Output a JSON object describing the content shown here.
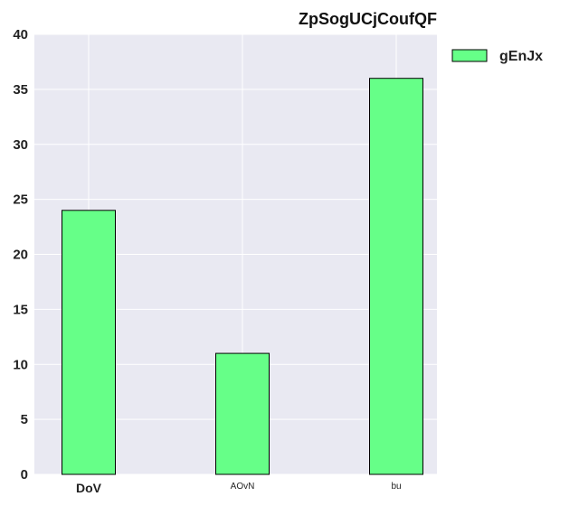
{
  "chart_data": {
    "type": "bar",
    "title": "ZpSogUCjCoufQF",
    "xlabel": "",
    "ylabel": "",
    "categories": [
      "DoV",
      "AOvN",
      "bu"
    ],
    "series": [
      {
        "name": "gEnJx",
        "values": [
          24,
          11,
          36
        ]
      }
    ],
    "ylim": [
      0,
      40
    ],
    "yticks": [
      0,
      5,
      10,
      15,
      20,
      25,
      30,
      35,
      40
    ],
    "grid": true,
    "legend_position": "outside-right-top",
    "colors": {
      "bar_fill": "#66ff88",
      "bar_edge": "#000000",
      "plot_background": "#e9e9f2",
      "grid": "#ffffff"
    }
  }
}
